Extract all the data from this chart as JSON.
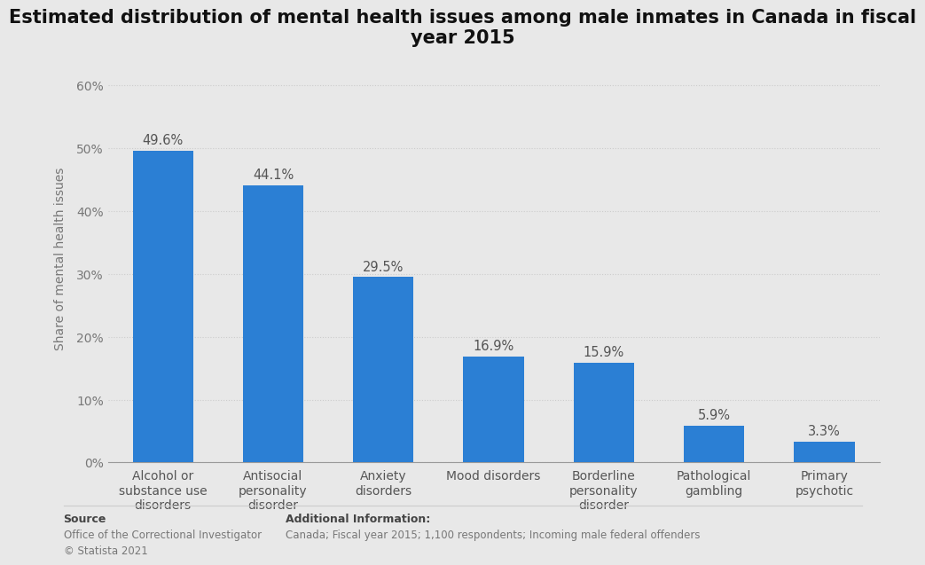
{
  "title": "Estimated distribution of mental health issues among male inmates in Canada in fiscal\nyear 2015",
  "categories": [
    "Alcohol or\nsubstance use\ndisorders",
    "Antisocial\npersonality\ndisorder",
    "Anxiety\ndisorders",
    "Mood disorders",
    "Borderline\npersonality\ndisorder",
    "Pathological\ngambling",
    "Primary\npsychotic"
  ],
  "values": [
    49.6,
    44.1,
    29.5,
    16.9,
    15.9,
    5.9,
    3.3
  ],
  "bar_color": "#2B7FD4",
  "ylabel": "Share of mental health issues",
  "ylim": [
    0,
    65
  ],
  "yticks": [
    0,
    10,
    20,
    30,
    40,
    50,
    60
  ],
  "ytick_labels": [
    "0%",
    "10%",
    "20%",
    "30%",
    "40%",
    "50%",
    "60%"
  ],
  "title_fontsize": 15,
  "label_fontsize": 10,
  "bar_label_fontsize": 10.5,
  "ylabel_fontsize": 10,
  "background_color": "#e8e8e8",
  "plot_background_color": "#e8e8e8",
  "grid_color": "#cccccc",
  "source_text": "Source",
  "source_line1": "Office of the Correctional Investigator",
  "source_line2": "© Statista 2021",
  "additional_info_label": "Additional Information:",
  "additional_info_text": "Canada; Fiscal year 2015; 1,100 respondents; Incoming male federal offenders"
}
